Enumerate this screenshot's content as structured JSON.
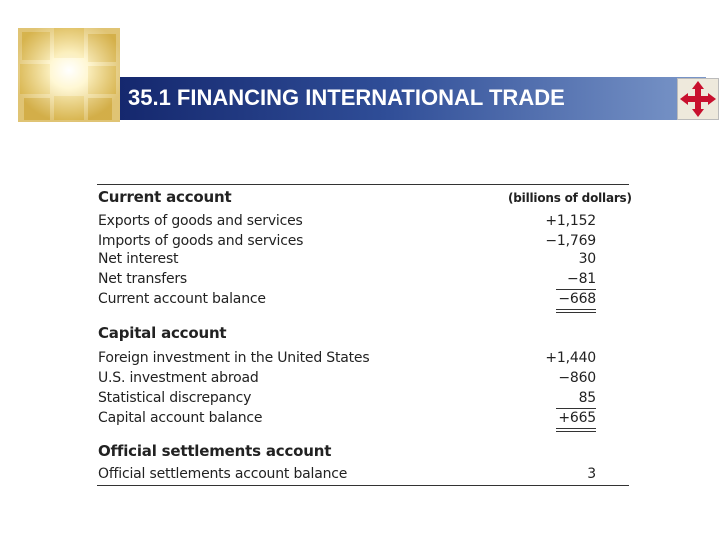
{
  "header": {
    "title": "35.1 FINANCING INTERNATIONAL TRADE"
  },
  "table": {
    "unit_label": "(billions of dollars)",
    "sections": [
      {
        "heading": "Current account",
        "rows": [
          [
            "Exports of goods and services",
            "+1,152"
          ],
          [
            "Imports of goods and services",
            "−1,769"
          ],
          [
            "Net interest",
            "30"
          ],
          [
            "Net transfers",
            "−81"
          ],
          [
            "Current account balance",
            "−668"
          ]
        ]
      },
      {
        "heading": "Capital account",
        "rows": [
          [
            "Foreign investment in the United States",
            "+1,440"
          ],
          [
            "U.S. investment abroad",
            "−860"
          ],
          [
            "Statistical discrepancy",
            "85"
          ],
          [
            "Capital account balance",
            "+665"
          ]
        ]
      },
      {
        "heading": "Official settlements account",
        "rows": [
          [
            "Official settlements account balance",
            "3"
          ]
        ]
      }
    ]
  }
}
